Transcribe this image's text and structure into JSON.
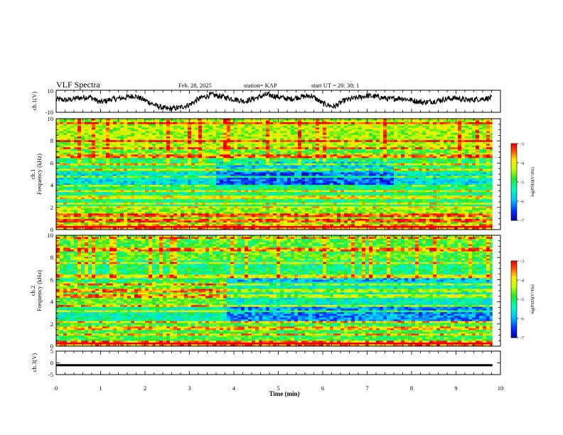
{
  "header": {
    "title": "VLF Spectra",
    "date": "Feb. 28, 2025",
    "station": "station= KAP",
    "start": "start  UT =   20: 30: 1"
  },
  "colors": {
    "axis": "#000000",
    "background": "#ffffff",
    "trace": "#000000",
    "colormap": [
      "#0000ff",
      "#00ffff",
      "#00ff66",
      "#ffff00",
      "#ff0000",
      "#ffffff"
    ]
  },
  "chart_data": [
    {
      "type": "line",
      "name": "ch1-waveform",
      "ylabel": "ch.1(V)",
      "ylim": [
        -10,
        10
      ],
      "yticks": [
        "10",
        "-10"
      ],
      "xlim": [
        0,
        10
      ],
      "x": [
        0,
        0.25,
        0.5,
        0.75,
        1,
        1.25,
        1.5,
        1.75,
        2,
        2.25,
        2.5,
        2.75,
        3,
        3.25,
        3.5,
        3.75,
        4,
        4.25,
        4.5,
        4.75,
        5,
        5.25,
        5.5,
        5.75,
        6,
        6.25,
        6.5,
        6.75,
        7,
        7.25,
        7.5,
        7.75,
        8,
        8.25,
        8.5,
        8.75,
        9,
        9.25,
        9.5,
        9.8
      ],
      "values": [
        2,
        1,
        3,
        4,
        -1,
        2,
        3,
        5,
        1,
        -4,
        -7,
        -6,
        -3,
        3,
        6,
        4,
        2,
        0,
        3,
        6,
        4,
        2,
        4,
        5,
        -2,
        -5,
        1,
        3,
        5,
        4,
        2,
        3,
        1,
        -1,
        0,
        2,
        3,
        1,
        2,
        3
      ]
    },
    {
      "type": "heatmap",
      "name": "ch1-spectrogram",
      "xlabel": "Time (min)",
      "ylabel": "Frequency (kHz)",
      "channel_label": "ch.1",
      "xlim": [
        0,
        9.82
      ],
      "ylim": [
        0,
        10
      ],
      "yticks": [
        "0",
        "2",
        "4",
        "6",
        "8",
        "10"
      ],
      "colorbar": {
        "label": "log(PSD)(V²/Hz)",
        "range": [
          -7,
          -3
        ],
        "ticks": [
          "-3",
          "-4",
          "-5",
          "-6",
          "-7"
        ]
      },
      "base_level_by_freq": [
        {
          "f": [
            0,
            0.5
          ],
          "level": -3.6
        },
        {
          "f": [
            0.5,
            2
          ],
          "level": -4.4
        },
        {
          "f": [
            2,
            3.8
          ],
          "level": -5.1
        },
        {
          "f": [
            3.8,
            5.2
          ],
          "level": -5.6
        },
        {
          "f": [
            5.2,
            6.4
          ],
          "level": -5.0
        },
        {
          "f": [
            6.4,
            7.5
          ],
          "level": -4.6
        },
        {
          "f": [
            7.5,
            10
          ],
          "level": -4.3
        }
      ],
      "dark_region": {
        "t": [
          3.5,
          7.5
        ],
        "f": [
          3.8,
          6.2
        ],
        "level_delta": -0.7
      },
      "lines_khz": [
        0.3,
        0.8,
        1.3,
        2.0,
        2.4,
        2.9,
        3.5,
        4.0,
        4.7,
        5.4,
        5.9,
        6.6,
        7.3,
        8.0,
        9.6
      ]
    },
    {
      "type": "heatmap",
      "name": "ch2-spectrogram",
      "xlabel": "Time (min)",
      "ylabel": "Frequency (kHz)",
      "channel_label": "ch.2",
      "xlim": [
        0,
        9.82
      ],
      "ylim": [
        0,
        10
      ],
      "yticks": [
        "0",
        "2",
        "4",
        "6",
        "8",
        "10"
      ],
      "colorbar": {
        "label": "log(PSD)(V²/Hz)",
        "range": [
          -7,
          -3
        ],
        "ticks": [
          "-3",
          "-4",
          "-5",
          "-6",
          "-7"
        ]
      },
      "base_level_by_freq": [
        {
          "f": [
            0,
            0.5
          ],
          "level": -3.5
        },
        {
          "f": [
            0.5,
            2.2
          ],
          "level": -4.8
        },
        {
          "f": [
            2.2,
            3.6
          ],
          "level": -5.3
        },
        {
          "f": [
            3.6,
            5.8
          ],
          "level": -4.6
        },
        {
          "f": [
            5.8,
            7.8
          ],
          "level": -5.1
        },
        {
          "f": [
            7.8,
            10
          ],
          "level": -4.7
        }
      ],
      "dark_region": {
        "t": [
          3.8,
          9.82
        ],
        "f": [
          2.2,
          6.2
        ],
        "level_delta": -0.8
      },
      "lines_khz": [
        0.3,
        1.0,
        1.6,
        2.2,
        3.1,
        3.6,
        4.5,
        5.0,
        5.6,
        6.3,
        7.5,
        8.7,
        9.7
      ]
    },
    {
      "type": "line",
      "name": "ch3-waveform",
      "xlabel": "Time (min)",
      "ylabel": "ch.3(V)",
      "ylim": [
        -5,
        5
      ],
      "yticks": [
        "5",
        "0",
        "-5"
      ],
      "xlim": [
        0,
        10
      ],
      "xticks": [
        "0",
        "1",
        "2",
        "3",
        "4",
        "5",
        "6",
        "7",
        "8",
        "9",
        "10"
      ],
      "x": [
        0,
        9.82
      ],
      "values": [
        -1,
        -1
      ],
      "band_halfwidth": 0.45
    }
  ]
}
